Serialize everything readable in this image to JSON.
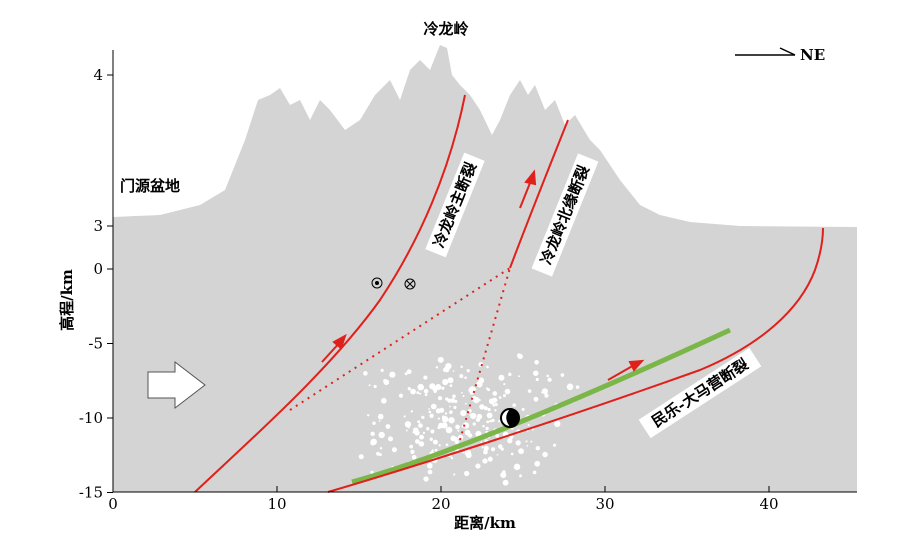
{
  "header": {
    "title": "冷龙岭",
    "direction": "NE"
  },
  "labels": {
    "basin": "门源盆地",
    "fault_main": "冷龙岭主断裂",
    "fault_north": "冷龙岭北缘断裂",
    "fault_minle": "民乐-大马营断裂"
  },
  "axes": {
    "x": {
      "label": "距离/km",
      "ticks": [
        0,
        10,
        20,
        30,
        40
      ]
    },
    "y": {
      "label": "高程/km",
      "ticks": [
        4,
        3,
        0,
        -5,
        -10,
        -15
      ]
    }
  }
}
